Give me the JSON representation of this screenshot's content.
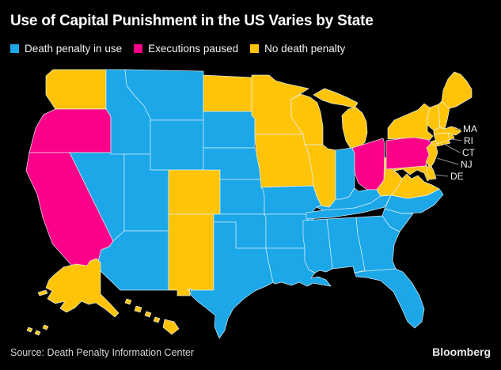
{
  "title": "Use of Capital Punishment in the US Varies by State",
  "source": "Source: Death Penalty Information Center",
  "brand": "Bloomberg",
  "legend": [
    {
      "key": "in_use",
      "label": "Death penalty in use",
      "color": "#1BA7E8"
    },
    {
      "key": "paused",
      "label": "Executions paused",
      "color": "#FB0088"
    },
    {
      "key": "none",
      "label": "No death penalty",
      "color": "#FFC407"
    }
  ],
  "callout_labels": [
    "MA",
    "RI",
    "CT",
    "NJ",
    "DE"
  ],
  "chart_data": {
    "type": "choropleth",
    "geography": "United States, by state (incl. Alaska and Hawaii insets)",
    "title": "Use of Capital Punishment in the US Varies by State",
    "categories": [
      "Death penalty in use",
      "Executions paused",
      "No death penalty"
    ],
    "category_colors": {
      "Death penalty in use": "#1BA7E8",
      "Executions paused": "#FB0088",
      "No death penalty": "#FFC407"
    },
    "legend_position": "top-left",
    "background": "#000000",
    "callouts": [
      "MA",
      "RI",
      "CT",
      "NJ",
      "DE"
    ],
    "source": "Source: Death Penalty Information Center",
    "states": {
      "WA": "none",
      "OR": "paused",
      "CA": "paused",
      "NV": "in_use",
      "ID": "in_use",
      "MT": "in_use",
      "WY": "in_use",
      "UT": "in_use",
      "AZ": "in_use",
      "CO": "none",
      "NM": "none",
      "ND": "none",
      "SD": "in_use",
      "NE": "in_use",
      "KS": "in_use",
      "OK": "in_use",
      "TX": "in_use",
      "MN": "none",
      "IA": "none",
      "MO": "in_use",
      "AR": "in_use",
      "LA": "in_use",
      "WI": "none",
      "IL": "none",
      "MI": "none",
      "IN": "in_use",
      "OH": "paused",
      "KY": "in_use",
      "TN": "in_use",
      "MS": "in_use",
      "AL": "in_use",
      "GA": "in_use",
      "FL": "in_use",
      "SC": "in_use",
      "NC": "in_use",
      "VA": "none",
      "WV": "none",
      "MD": "none",
      "DE": "none",
      "PA": "paused",
      "NY": "none",
      "NJ": "none",
      "CT": "none",
      "RI": "none",
      "MA": "none",
      "VT": "none",
      "NH": "none",
      "ME": "none",
      "AK": "none",
      "HI": "none"
    }
  }
}
